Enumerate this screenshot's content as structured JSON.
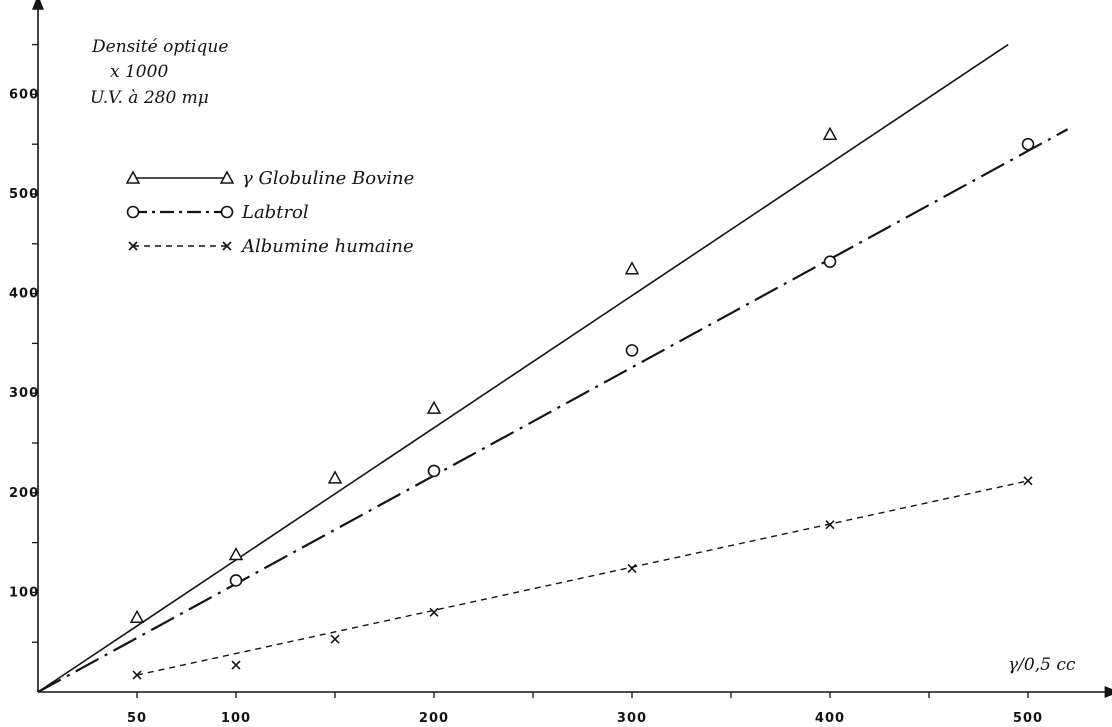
{
  "chart_data": {
    "type": "line",
    "ylabel_lines": [
      "Densité optique",
      "x 1000",
      "U.V. à 280 mμ"
    ],
    "xlabel": "γ/0,5 cc",
    "x_ticks": [
      50,
      100,
      200,
      300,
      400,
      500
    ],
    "y_ticks": [
      100,
      200,
      300,
      400,
      500,
      600
    ],
    "xlim": [
      0,
      520
    ],
    "ylim": [
      0,
      680
    ],
    "grid": false,
    "legend_position": "top-left",
    "series": [
      {
        "name": "γ Globuline Bovine",
        "marker": "triangle",
        "line_style": "solid",
        "points": [
          [
            50,
            75
          ],
          [
            100,
            138
          ],
          [
            150,
            215
          ],
          [
            200,
            285
          ],
          [
            300,
            425
          ],
          [
            400,
            560
          ]
        ],
        "fit_line": [
          [
            0,
            0
          ],
          [
            490,
            650
          ]
        ]
      },
      {
        "name": "Labtrol",
        "marker": "circle",
        "line_style": "dash-dot",
        "points": [
          [
            100,
            112
          ],
          [
            200,
            222
          ],
          [
            300,
            343
          ],
          [
            400,
            432
          ],
          [
            500,
            550
          ]
        ],
        "fit_line": [
          [
            0,
            0
          ],
          [
            520,
            565
          ]
        ]
      },
      {
        "name": "Albumine humaine",
        "marker": "x",
        "line_style": "dashed",
        "points": [
          [
            50,
            17
          ],
          [
            100,
            27
          ],
          [
            150,
            53
          ],
          [
            200,
            80
          ],
          [
            300,
            124
          ],
          [
            400,
            168
          ],
          [
            500,
            212
          ]
        ],
        "fit_line": [
          [
            50,
            17
          ],
          [
            500,
            212
          ]
        ]
      }
    ]
  }
}
